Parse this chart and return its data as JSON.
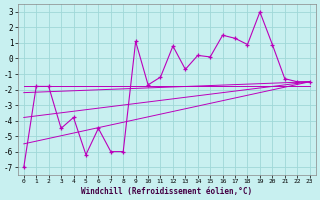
{
  "xlabel": "Windchill (Refroidissement éolien,°C)",
  "bg_color": "#c8f0f0",
  "grid_color": "#a0d8d8",
  "line_color": "#bb00bb",
  "xlim": [
    -0.5,
    23.5
  ],
  "ylim": [
    -7.5,
    3.5
  ],
  "yticks": [
    -7,
    -6,
    -5,
    -4,
    -3,
    -2,
    -1,
    0,
    1,
    2,
    3
  ],
  "xticks": [
    0,
    1,
    2,
    3,
    4,
    5,
    6,
    7,
    8,
    9,
    10,
    11,
    12,
    13,
    14,
    15,
    16,
    17,
    18,
    19,
    20,
    21,
    22,
    23
  ],
  "main_x": [
    0,
    1,
    2,
    3,
    4,
    5,
    6,
    7,
    8,
    9,
    10,
    11,
    12,
    13,
    14,
    15,
    16,
    17,
    18,
    19,
    20,
    21,
    22,
    23
  ],
  "main_y": [
    -7.0,
    -1.8,
    -1.8,
    -4.5,
    -3.8,
    -6.2,
    -4.5,
    -6.0,
    -6.0,
    1.1,
    -1.7,
    -1.2,
    0.8,
    -0.7,
    0.2,
    0.1,
    1.5,
    1.3,
    0.9,
    3.0,
    0.9,
    -1.3,
    -1.5,
    -1.5
  ],
  "line1_x": [
    0,
    23
  ],
  "line1_y": [
    -1.8,
    -1.8
  ],
  "line2_x": [
    0,
    23
  ],
  "line2_y": [
    -2.2,
    -1.5
  ],
  "line3_x": [
    0,
    23
  ],
  "line3_y": [
    -3.8,
    -1.5
  ],
  "line4_x": [
    0,
    23
  ],
  "line4_y": [
    -5.5,
    -1.5
  ]
}
